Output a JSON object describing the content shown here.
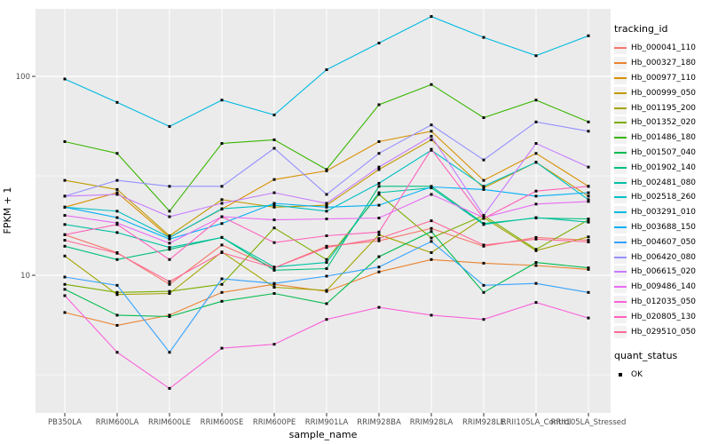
{
  "figure": {
    "background": "#FFFFFF",
    "panel_background": "#EBEBEB",
    "grid_color": "#FFFFFF",
    "tick_label_color": "#4D4D4D",
    "axis_title_color": "#000000",
    "marker": {
      "shape": "square",
      "color": "#000000",
      "size": 3
    }
  },
  "legends": [
    {
      "title": "tracking_id"
    },
    {
      "title": "quant_status",
      "items": [
        {
          "label": "OK",
          "color": "#000000"
        }
      ]
    }
  ],
  "chart_data": {
    "type": "line",
    "title": "",
    "xlabel": "sample_name",
    "ylabel": "FPKM + 1",
    "yscale": "log10",
    "ylim": [
      2.0,
      220
    ],
    "y_major_ticks": [
      100,
      10
    ],
    "y_minor_ticks": [
      31.6,
      3.16
    ],
    "grid": true,
    "legend_position": "right",
    "categories": [
      "PB350LA",
      "RRIM600LA",
      "RRIM600LE",
      "RRIM600SE",
      "RRIM600PE",
      "RRIM901LA",
      "RRIM928BA",
      "RRIM928LA",
      "RRIM928LE",
      "RRII105LA_Control",
      "RRII105LA_Stressed"
    ],
    "series": [
      {
        "name": "Hb_000041_110",
        "color": "#F8766D",
        "values": [
          16,
          13,
          9,
          14.2,
          10.9,
          14,
          14.9,
          17.2,
          14,
          15.5,
          15
        ]
      },
      {
        "name": "Hb_000327_180",
        "color": "#EA8331",
        "values": [
          6.5,
          5.6,
          6.3,
          8.2,
          9,
          8.3,
          10.4,
          12,
          11.5,
          11.2,
          10.7
        ]
      },
      {
        "name": "Hb_000977_110",
        "color": "#D89000",
        "values": [
          22,
          26,
          15.5,
          21.5,
          30.3,
          33.5,
          47,
          53,
          30,
          41,
          28
        ]
      },
      {
        "name": "Hb_000999_050",
        "color": "#C09B00",
        "values": [
          30,
          27,
          15.8,
          24,
          22,
          22.5,
          34,
          48,
          27.5,
          37,
          25
        ]
      },
      {
        "name": "Hb_001195_200",
        "color": "#A3A500",
        "values": [
          12.5,
          8,
          8.1,
          13.1,
          8.7,
          8.4,
          16,
          13,
          19.5,
          13.3,
          15.6
        ]
      },
      {
        "name": "Hb_001352_020",
        "color": "#7CAE00",
        "values": [
          9,
          8.2,
          8.3,
          9,
          17.3,
          12,
          25.5,
          15.4,
          20,
          13.5,
          19
        ]
      },
      {
        "name": "Hb_001486_180",
        "color": "#39B600",
        "values": [
          47,
          41,
          21,
          46,
          48,
          34,
          72,
          91,
          62,
          76,
          59
        ]
      },
      {
        "name": "Hb_001507_040",
        "color": "#00BB4E",
        "values": [
          8.5,
          6.3,
          6.2,
          7.4,
          8.1,
          7.2,
          12.4,
          16.6,
          8.2,
          11.6,
          10.9
        ]
      },
      {
        "name": "Hb_001902_140",
        "color": "#00BF7D",
        "values": [
          14,
          12,
          13.5,
          15.5,
          10.6,
          10.8,
          28,
          28,
          18.2,
          19.4,
          19.2
        ]
      },
      {
        "name": "Hb_002481_080",
        "color": "#00C1A3",
        "values": [
          18,
          16.4,
          13.8,
          15.5,
          11,
          11.6,
          26,
          27.5,
          18,
          19.5,
          18.5
        ]
      },
      {
        "name": "Hb_002518_260",
        "color": "#00BFC4",
        "values": [
          22,
          21,
          15.5,
          21.6,
          22.5,
          21,
          29,
          42.5,
          28,
          37,
          24
        ]
      },
      {
        "name": "Hb_003291_010",
        "color": "#00BAE0",
        "values": [
          97,
          74,
          56,
          76,
          64,
          108,
          147,
          200,
          157,
          127,
          160
        ]
      },
      {
        "name": "Hb_003688_150",
        "color": "#00B0F6",
        "values": [
          22,
          19.5,
          15.2,
          18.2,
          23,
          22,
          22.5,
          27.8,
          27,
          25,
          26
        ]
      },
      {
        "name": "Hb_004607_050",
        "color": "#35A2FF",
        "values": [
          9.8,
          8.9,
          4.1,
          9.6,
          9.1,
          9.9,
          11,
          14.8,
          8.9,
          9.1,
          8.2
        ]
      },
      {
        "name": "Hb_006420_080",
        "color": "#9590FF",
        "values": [
          25,
          30,
          28,
          28,
          43.5,
          25.5,
          41,
          57,
          38,
          59,
          53
        ]
      },
      {
        "name": "Hb_006615_020",
        "color": "#C77CFF",
        "values": [
          25,
          25.5,
          19.7,
          23,
          26,
          23,
          35,
          50,
          20,
          46,
          35
        ]
      },
      {
        "name": "Hb_009486_140",
        "color": "#E76BF3",
        "values": [
          20,
          18.3,
          14.5,
          19.7,
          19,
          19.2,
          19.4,
          25.5,
          19.5,
          22.8,
          23.5
        ]
      },
      {
        "name": "Hb_012035_050",
        "color": "#FA62DB",
        "values": [
          7.9,
          4.1,
          2.7,
          4.3,
          4.5,
          6,
          6.9,
          6.3,
          6,
          7.3,
          6.1
        ]
      },
      {
        "name": "Hb_020805_130",
        "color": "#FF62BC",
        "values": [
          16,
          18,
          12,
          19.7,
          14.6,
          15.8,
          16.5,
          43,
          19.3,
          26.5,
          28
        ]
      },
      {
        "name": "Hb_029510_050",
        "color": "#FF6A98",
        "values": [
          15,
          12.9,
          9.3,
          13,
          10.9,
          13.8,
          15.3,
          18.8,
          14.2,
          15.2,
          14.7
        ]
      }
    ]
  }
}
